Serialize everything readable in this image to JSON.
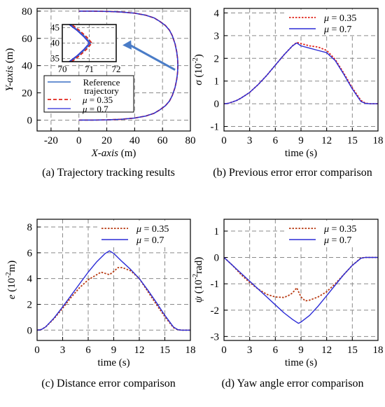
{
  "colors": {
    "reference": "#3a6fc4",
    "mu035": "#e0241b",
    "mu07": "#2b2bd6",
    "mu035_panel_cd": "#b83a12",
    "axis": "#000000",
    "grid": "#8a8a8a",
    "arrow": "#4a7cc7"
  },
  "chart_data": [
    {
      "id": "a",
      "type": "line",
      "caption": "(a) Trajectory tracking results",
      "xlabel_italic": "X-axis",
      "xlabel_unit": " (m)",
      "ylabel_italic": "Y-axis",
      "ylabel_unit": " (m)",
      "xlim": [
        -30,
        80
      ],
      "ylim": [
        -8,
        82
      ],
      "xticks": [
        "-20",
        "0",
        "20",
        "40",
        "60",
        "80"
      ],
      "xtick_values": [
        -20,
        0,
        20,
        40,
        60,
        80
      ],
      "yticks": [
        "0",
        "20",
        "40",
        "60",
        "80"
      ],
      "ytick_values": [
        0,
        20,
        40,
        60,
        80
      ],
      "grid": true,
      "legend": {
        "placement": "bottom-left",
        "entries": [
          "Reference trajectory",
          "μ = 0.35",
          "μ = 0.7"
        ]
      },
      "series": [
        {
          "name": "Reference trajectory",
          "style": "solid",
          "x": [
            0,
            10,
            20,
            30,
            40,
            48,
            54,
            58,
            62,
            65,
            67,
            69,
            70.2,
            70.8,
            71,
            70.8,
            70.2,
            69,
            67,
            65,
            62,
            58,
            54,
            48,
            40,
            30,
            20,
            10,
            0
          ],
          "y": [
            0,
            0,
            0.2,
            0.6,
            1.5,
            3,
            5,
            7.5,
            10.5,
            14,
            18,
            24,
            30,
            35,
            40,
            45,
            50,
            56,
            62,
            66,
            69.5,
            72.5,
            75,
            77,
            78.5,
            79.4,
            79.8,
            80,
            80
          ]
        },
        {
          "name": "μ = 0.35",
          "style": "dashed",
          "x": [
            0,
            10,
            20,
            30,
            40,
            48,
            54,
            58,
            62,
            65,
            67,
            69,
            70.2,
            70.8,
            71,
            70.8,
            70.2,
            69,
            67,
            65,
            62,
            58,
            54,
            48,
            40,
            30,
            20,
            10,
            0
          ],
          "y": [
            0,
            0,
            0.2,
            0.6,
            1.5,
            3,
            5,
            7.5,
            10.5,
            14,
            18,
            24,
            30,
            35,
            40,
            45,
            50,
            56,
            62,
            66,
            69.5,
            72.5,
            75,
            77,
            78.5,
            79.4,
            79.8,
            80,
            80
          ]
        },
        {
          "name": "μ = 0.7",
          "style": "solid",
          "x": [
            0,
            10,
            20,
            30,
            40,
            48,
            54,
            58,
            62,
            65,
            67,
            69,
            70.2,
            70.8,
            71,
            70.8,
            70.2,
            69,
            67,
            65,
            62,
            58,
            54,
            48,
            40,
            30,
            20,
            10,
            0
          ],
          "y": [
            0,
            0,
            0.2,
            0.6,
            1.5,
            3,
            5,
            7.5,
            10.5,
            14,
            18,
            24,
            30,
            35,
            40,
            45,
            50,
            56,
            62,
            66,
            69.5,
            72.5,
            75,
            77,
            78.5,
            79.4,
            79.8,
            80,
            80
          ]
        }
      ],
      "inset": {
        "xlim": [
          70,
          72
        ],
        "ylim": [
          34,
          46
        ],
        "xticks": [
          "70",
          "71",
          "72"
        ],
        "xtick_values": [
          70,
          71,
          72
        ],
        "yticks": [
          "35",
          "40",
          "45"
        ],
        "ytick_values": [
          35,
          40,
          45
        ],
        "series": [
          {
            "name": "Reference trajectory",
            "x": [
              70.3,
              70.6,
              70.85,
              71.0,
              71.05,
              71.0,
              70.85,
              70.6,
              70.3
            ],
            "y": [
              34,
              36,
              38,
              39.5,
              40,
              40.5,
              42,
              44,
              46
            ]
          },
          {
            "name": "μ = 0.35",
            "x": [
              70.35,
              70.65,
              70.9,
              71.05,
              71.1,
              71.05,
              70.9,
              70.65,
              70.35
            ],
            "y": [
              34,
              36,
              38,
              39.5,
              40,
              40.5,
              42,
              44,
              46
            ]
          },
          {
            "name": "μ = 0.7",
            "x": [
              70.25,
              70.55,
              70.8,
              70.95,
              71.0,
              70.95,
              70.8,
              70.55,
              70.25
            ],
            "y": [
              34,
              36,
              38,
              39.5,
              40,
              40.5,
              42,
              44,
              46
            ]
          }
        ],
        "zoom_point": [
          71,
          40
        ]
      }
    },
    {
      "id": "b",
      "type": "line",
      "caption": "(b) Previous error error comparison",
      "xlabel": "time (s)",
      "ylabel_italic": "σ",
      "ylabel_unit": " (10",
      "ylabel_exp": "-2",
      "ylabel_tail": ")",
      "xlim": [
        0,
        18
      ],
      "ylim": [
        -1.2,
        4.2
      ],
      "xticks": [
        "0",
        "3",
        "6",
        "9",
        "12",
        "15",
        "18"
      ],
      "xtick_values": [
        0,
        3,
        6,
        9,
        12,
        15,
        18
      ],
      "yticks": [
        "-1",
        "0",
        "1",
        "2",
        "3",
        "4"
      ],
      "ytick_values": [
        -1,
        0,
        1,
        2,
        3,
        4
      ],
      "grid": true,
      "legend": {
        "placement": "top-right",
        "entries": [
          "μ = 0.35",
          "μ = 0.7"
        ]
      },
      "series": [
        {
          "name": "μ = 0.35",
          "style": "dotted",
          "x": [
            0,
            0.5,
            1,
            1.5,
            2,
            3,
            4,
            5,
            6,
            7,
            8,
            8.5,
            9,
            10,
            11,
            12,
            13,
            14,
            15,
            16,
            16.5,
            17,
            18
          ],
          "y": [
            0,
            0.02,
            0.08,
            0.15,
            0.25,
            0.5,
            0.85,
            1.25,
            1.7,
            2.15,
            2.55,
            2.7,
            2.65,
            2.55,
            2.5,
            2.35,
            1.95,
            1.35,
            0.7,
            0.15,
            0.03,
            0,
            0
          ]
        },
        {
          "name": "μ = 0.7",
          "style": "solid",
          "x": [
            0,
            0.5,
            1,
            1.5,
            2,
            3,
            4,
            5,
            6,
            7,
            8,
            8.5,
            9,
            10,
            11,
            12,
            13,
            14,
            15,
            16,
            16.5,
            17,
            18
          ],
          "y": [
            0,
            0.02,
            0.08,
            0.15,
            0.25,
            0.5,
            0.85,
            1.25,
            1.7,
            2.15,
            2.55,
            2.68,
            2.55,
            2.45,
            2.35,
            2.25,
            1.9,
            1.3,
            0.65,
            0.1,
            0.02,
            0,
            0
          ]
        }
      ]
    },
    {
      "id": "c",
      "type": "line",
      "caption": "(c) Distance error comparison",
      "xlabel": "time (s)",
      "ylabel_italic": "e",
      "ylabel_unit": " (10",
      "ylabel_exp": "-2",
      "ylabel_tail": "m)",
      "xlim": [
        0,
        18
      ],
      "ylim": [
        -0.8,
        8.6
      ],
      "xticks": [
        "0",
        "3",
        "6",
        "9",
        "12",
        "15",
        "18"
      ],
      "xtick_values": [
        0,
        3,
        6,
        9,
        12,
        15,
        18
      ],
      "yticks": [
        "0",
        "2",
        "4",
        "6",
        "8"
      ],
      "ytick_values": [
        0,
        2,
        4,
        6,
        8
      ],
      "grid": true,
      "legend": {
        "placement": "top-right",
        "entries": [
          "μ = 0.35",
          "μ = 0.7"
        ]
      },
      "series": [
        {
          "name": "μ = 0.35",
          "style": "dotted",
          "x": [
            0,
            0.5,
            1,
            2,
            3,
            4,
            5,
            6,
            7,
            7.5,
            8,
            8.5,
            9,
            9.5,
            10,
            11,
            12,
            13,
            14,
            15,
            16,
            16.5,
            17,
            18
          ],
          "y": [
            0,
            0.05,
            0.25,
            0.9,
            1.7,
            2.55,
            3.3,
            3.9,
            4.3,
            4.5,
            4.4,
            4.3,
            4.55,
            4.85,
            4.85,
            4.6,
            4.0,
            3.0,
            2.0,
            1.05,
            0.2,
            0.03,
            0,
            0
          ]
        },
        {
          "name": "μ = 0.7",
          "style": "solid",
          "x": [
            0,
            0.5,
            1,
            2,
            3,
            4,
            5,
            6,
            7,
            8,
            8.5,
            9,
            10,
            11,
            12,
            13,
            14,
            15,
            16,
            16.5,
            17,
            18
          ],
          "y": [
            0,
            0.05,
            0.25,
            0.95,
            1.8,
            2.7,
            3.6,
            4.5,
            5.3,
            5.95,
            6.15,
            5.95,
            5.3,
            4.7,
            4.0,
            3.1,
            2.15,
            1.15,
            0.25,
            0.04,
            0,
            0
          ]
        }
      ]
    },
    {
      "id": "d",
      "type": "line",
      "caption": "(d) Yaw angle error comparison",
      "xlabel": "time (s)",
      "ylabel_italic": "ψ",
      "ylabel_unit": " (10",
      "ylabel_exp": "-2",
      "ylabel_tail": "rad)",
      "xlim": [
        0,
        18
      ],
      "ylim": [
        -3.15,
        1.45
      ],
      "xticks": [
        "0",
        "3",
        "6",
        "9",
        "12",
        "15",
        "18"
      ],
      "xtick_values": [
        0,
        3,
        6,
        9,
        12,
        15,
        18
      ],
      "yticks": [
        "-3",
        "-2",
        "-1",
        "0",
        "1"
      ],
      "ytick_values": [
        -3,
        -2,
        -1,
        0,
        1
      ],
      "grid": true,
      "legend": {
        "placement": "top-right",
        "entries": [
          "μ = 0.35",
          "μ = 0.7"
        ]
      },
      "series": [
        {
          "name": "μ = 0.35",
          "style": "dotted",
          "x": [
            0,
            1,
            2,
            3,
            4,
            5,
            6,
            7,
            7.5,
            8,
            8.5,
            9,
            9.5,
            10,
            11,
            12,
            13,
            14,
            15,
            16,
            16.5,
            17,
            18
          ],
          "y": [
            0,
            -0.3,
            -0.65,
            -0.95,
            -1.2,
            -1.4,
            -1.5,
            -1.52,
            -1.45,
            -1.35,
            -1.15,
            -1.5,
            -1.65,
            -1.62,
            -1.5,
            -1.3,
            -1.0,
            -0.65,
            -0.3,
            -0.02,
            0,
            0,
            0
          ]
        },
        {
          "name": "μ = 0.7",
          "style": "solid",
          "x": [
            0,
            1,
            2,
            3,
            4,
            5,
            6,
            7,
            8,
            8.7,
            9,
            10,
            11,
            12,
            13,
            14,
            15,
            16,
            16.5,
            17,
            18
          ],
          "y": [
            0,
            -0.3,
            -0.6,
            -0.9,
            -1.2,
            -1.5,
            -1.8,
            -2.1,
            -2.35,
            -2.5,
            -2.45,
            -2.2,
            -1.85,
            -1.45,
            -1.05,
            -0.65,
            -0.3,
            -0.03,
            0,
            0,
            0
          ]
        }
      ]
    }
  ]
}
